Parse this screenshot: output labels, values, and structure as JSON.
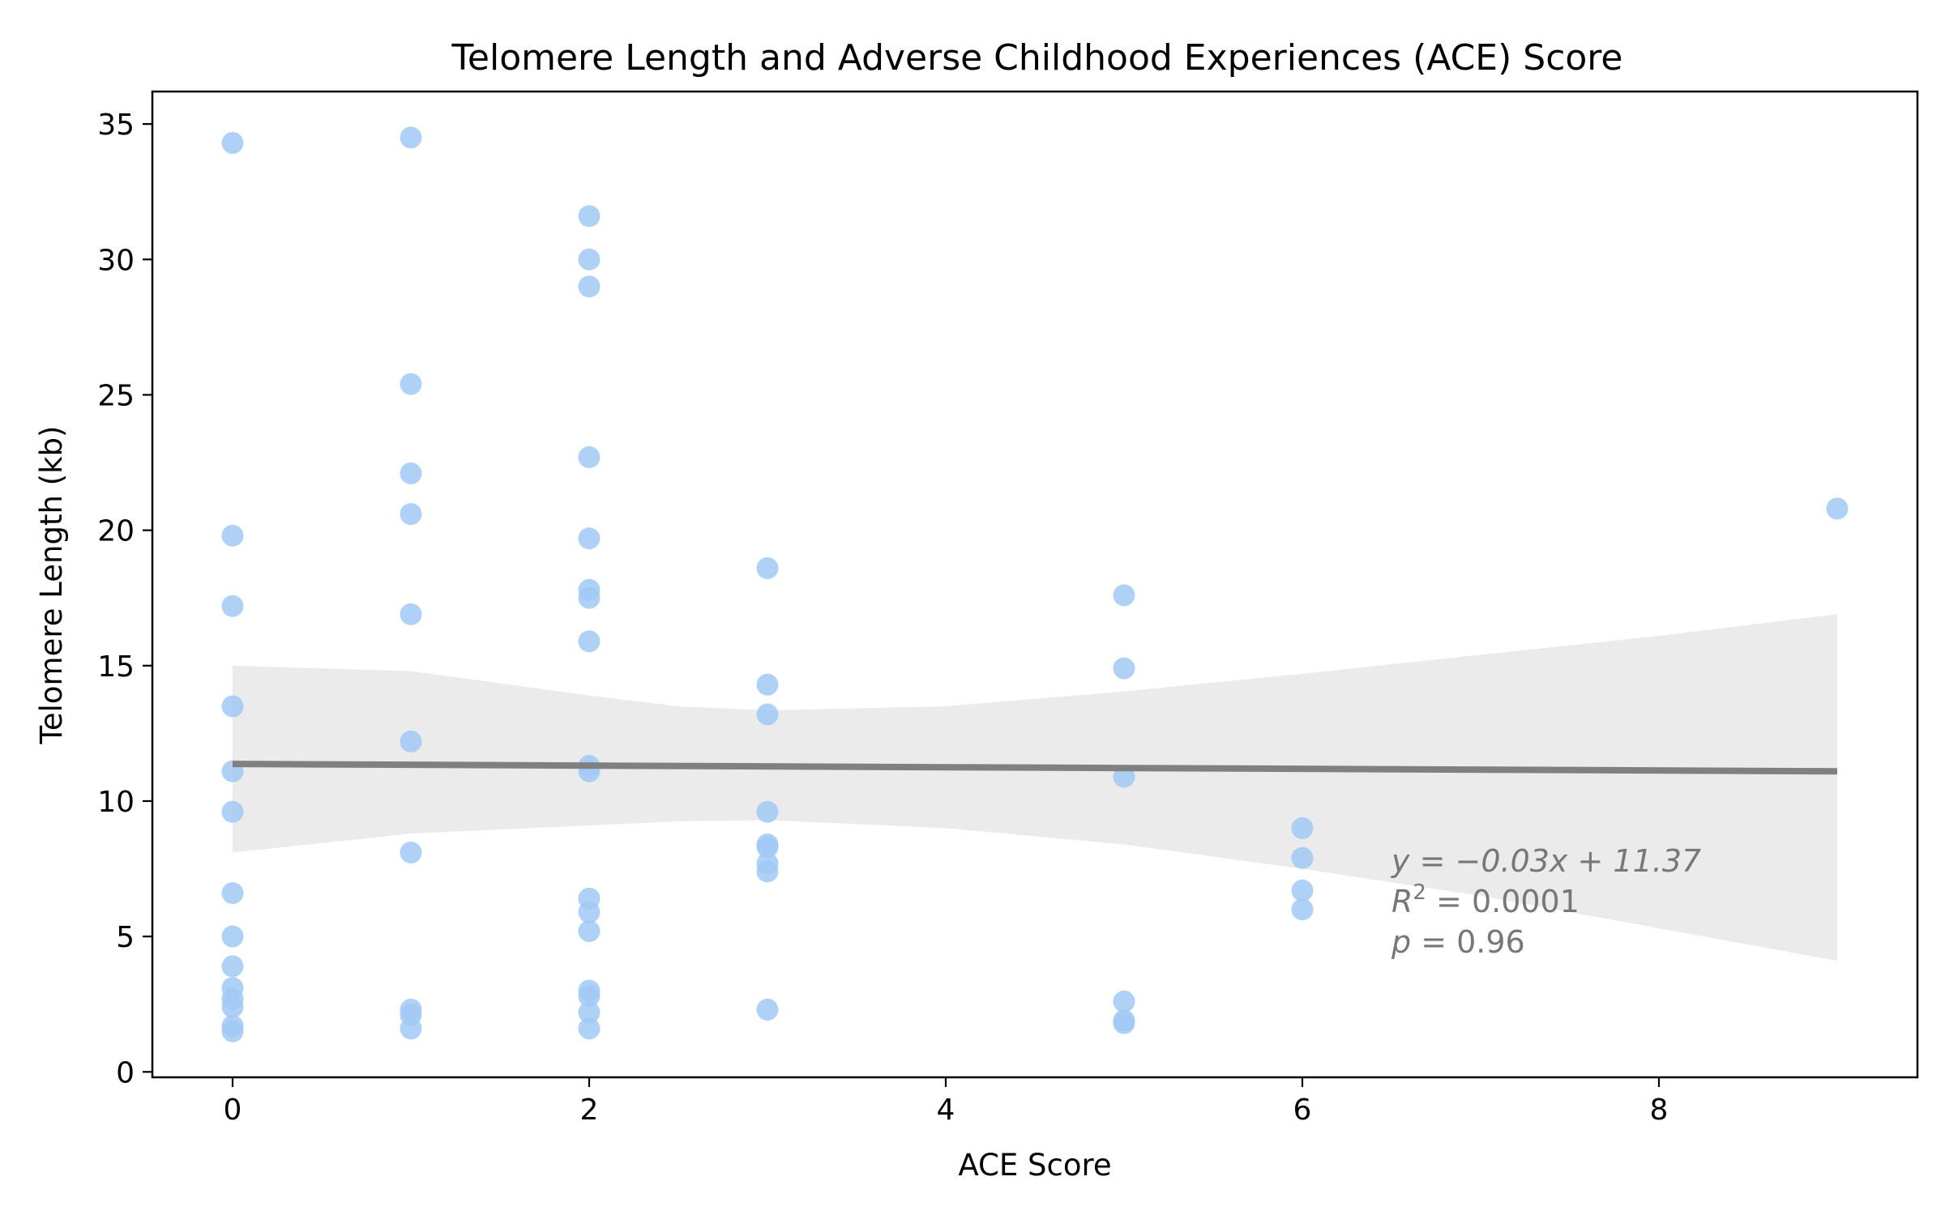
{
  "chart_data": {
    "type": "scatter",
    "title": "Telomere Length and Adverse Childhood Experiences (ACE) Score",
    "xlabel": "ACE Score",
    "ylabel": "Telomere Length (kb)",
    "xlim": [
      -0.45,
      9.45
    ],
    "ylim": [
      -0.2,
      36.2
    ],
    "x_ticks": [
      0,
      2,
      4,
      6,
      8
    ],
    "y_ticks": [
      0,
      5,
      10,
      15,
      20,
      25,
      30,
      35
    ],
    "grid": false,
    "colors": {
      "points": "#a1c9f4",
      "regression_line": "#808080",
      "confidence_band": "#ebebeb",
      "annotation": "#777777"
    },
    "points": [
      [
        0,
        34.3
      ],
      [
        0,
        19.8
      ],
      [
        0,
        17.2
      ],
      [
        0,
        13.5
      ],
      [
        0,
        11.1
      ],
      [
        0,
        9.6
      ],
      [
        0,
        6.6
      ],
      [
        0,
        5.0
      ],
      [
        0,
        3.9
      ],
      [
        0,
        3.1
      ],
      [
        0,
        2.7
      ],
      [
        0,
        2.4
      ],
      [
        0,
        1.7
      ],
      [
        0,
        1.5
      ],
      [
        1,
        34.5
      ],
      [
        1,
        25.4
      ],
      [
        1,
        22.1
      ],
      [
        1,
        20.6
      ],
      [
        1,
        16.9
      ],
      [
        1,
        12.2
      ],
      [
        1,
        8.1
      ],
      [
        1,
        2.3
      ],
      [
        1,
        2.1
      ],
      [
        1,
        1.6
      ],
      [
        2,
        31.6
      ],
      [
        2,
        30.0
      ],
      [
        2,
        29.0
      ],
      [
        2,
        22.7
      ],
      [
        2,
        19.7
      ],
      [
        2,
        17.8
      ],
      [
        2,
        17.5
      ],
      [
        2,
        15.9
      ],
      [
        2,
        11.3
      ],
      [
        2,
        11.1
      ],
      [
        2,
        6.4
      ],
      [
        2,
        5.9
      ],
      [
        2,
        5.2
      ],
      [
        2,
        3.0
      ],
      [
        2,
        2.8
      ],
      [
        2,
        2.2
      ],
      [
        2,
        1.6
      ],
      [
        3,
        18.6
      ],
      [
        3,
        14.3
      ],
      [
        3,
        13.2
      ],
      [
        3,
        9.6
      ],
      [
        3,
        8.4
      ],
      [
        3,
        8.3
      ],
      [
        3,
        7.7
      ],
      [
        3,
        7.4
      ],
      [
        3,
        2.3
      ],
      [
        5,
        17.6
      ],
      [
        5,
        14.9
      ],
      [
        5,
        10.9
      ],
      [
        5,
        2.6
      ],
      [
        5,
        1.9
      ],
      [
        5,
        1.8
      ],
      [
        6,
        9.0
      ],
      [
        6,
        7.9
      ],
      [
        6,
        6.7
      ],
      [
        6,
        6.0
      ],
      [
        9,
        20.8
      ]
    ],
    "regression": {
      "slope": -0.03,
      "intercept": 11.37,
      "x_range": [
        0,
        9
      ]
    },
    "confidence_band": {
      "x": [
        0,
        1,
        2,
        2.5,
        3,
        4,
        5,
        6,
        7,
        8,
        9
      ],
      "upper": [
        15.0,
        14.8,
        13.9,
        13.5,
        13.35,
        13.5,
        14.05,
        14.7,
        15.4,
        16.1,
        16.9
      ],
      "lower": [
        8.1,
        8.8,
        9.1,
        9.25,
        9.3,
        9.0,
        8.4,
        7.5,
        6.5,
        5.3,
        4.1
      ]
    },
    "annotation": {
      "equation": "y = −0.03x + 11.37",
      "r2_label": "R",
      "r2_sup": "2",
      "r2_value": " = 0.0001",
      "p_label": "p",
      "p_value": " = 0.96",
      "anchor": [
        6.5,
        7.4
      ]
    }
  }
}
